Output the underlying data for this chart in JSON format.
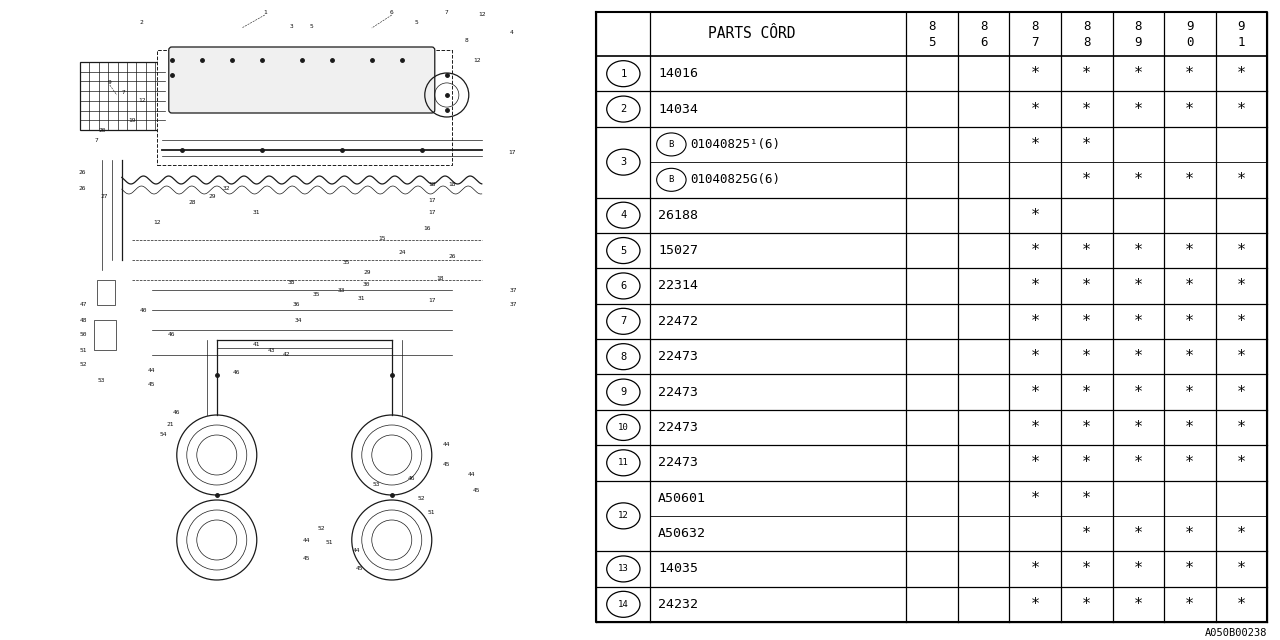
{
  "background_color": "#ffffff",
  "line_color": "#000000",
  "code": "A050B00238",
  "col_header_label": "PARTS CÔRD",
  "year_cols": [
    "8\n5",
    "8\n6",
    "8\n7",
    "8\n8",
    "8\n9",
    "9\n0",
    "9\n1"
  ],
  "year_labels_top": [
    "8",
    "8",
    "8",
    "8",
    "8",
    "9",
    "9"
  ],
  "year_labels_bot": [
    "5",
    "6",
    "7",
    "8",
    "9",
    "0",
    "1"
  ],
  "rows": [
    {
      "num": "1",
      "parts": [
        "14016"
      ],
      "marks": [
        [
          0,
          0,
          1,
          1,
          1,
          1,
          1
        ]
      ]
    },
    {
      "num": "2",
      "parts": [
        "14034"
      ],
      "marks": [
        [
          0,
          0,
          1,
          1,
          1,
          1,
          1
        ]
      ]
    },
    {
      "num": "3",
      "parts": [
        "B01040825¹(6)",
        "B01040825G(6)"
      ],
      "marks": [
        [
          0,
          0,
          1,
          1,
          0,
          0,
          0
        ],
        [
          0,
          0,
          0,
          1,
          1,
          1,
          1
        ]
      ],
      "b_prefix": [
        true,
        true
      ]
    },
    {
      "num": "4",
      "parts": [
        "26188"
      ],
      "marks": [
        [
          0,
          0,
          1,
          0,
          0,
          0,
          0
        ]
      ]
    },
    {
      "num": "5",
      "parts": [
        "15027"
      ],
      "marks": [
        [
          0,
          0,
          1,
          1,
          1,
          1,
          1
        ]
      ]
    },
    {
      "num": "6",
      "parts": [
        "22314"
      ],
      "marks": [
        [
          0,
          0,
          1,
          1,
          1,
          1,
          1
        ]
      ]
    },
    {
      "num": "7",
      "parts": [
        "22472"
      ],
      "marks": [
        [
          0,
          0,
          1,
          1,
          1,
          1,
          1
        ]
      ]
    },
    {
      "num": "8",
      "parts": [
        "22473"
      ],
      "marks": [
        [
          0,
          0,
          1,
          1,
          1,
          1,
          1
        ]
      ]
    },
    {
      "num": "9",
      "parts": [
        "22473"
      ],
      "marks": [
        [
          0,
          0,
          1,
          1,
          1,
          1,
          1
        ]
      ]
    },
    {
      "num": "10",
      "parts": [
        "22473"
      ],
      "marks": [
        [
          0,
          0,
          1,
          1,
          1,
          1,
          1
        ]
      ]
    },
    {
      "num": "11",
      "parts": [
        "22473"
      ],
      "marks": [
        [
          0,
          0,
          1,
          1,
          1,
          1,
          1
        ]
      ]
    },
    {
      "num": "12",
      "parts": [
        "A50601",
        "A50632"
      ],
      "marks": [
        [
          0,
          0,
          1,
          1,
          0,
          0,
          0
        ],
        [
          0,
          0,
          0,
          1,
          1,
          1,
          1
        ]
      ],
      "b_prefix": [
        false,
        false
      ]
    },
    {
      "num": "13",
      "parts": [
        "14035"
      ],
      "marks": [
        [
          0,
          0,
          1,
          1,
          1,
          1,
          1
        ]
      ]
    },
    {
      "num": "14",
      "parts": [
        "24232"
      ],
      "marks": [
        [
          0,
          0,
          1,
          1,
          1,
          1,
          1
        ]
      ]
    }
  ]
}
